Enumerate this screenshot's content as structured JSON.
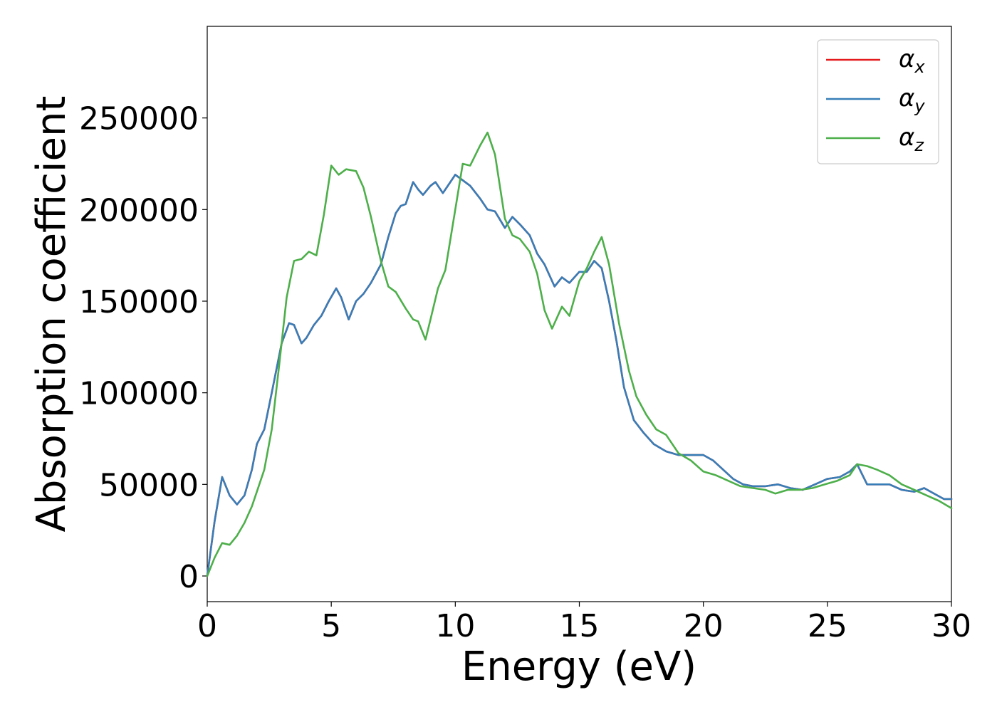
{
  "chart_data": {
    "type": "line",
    "xlabel": "Energy (eV)",
    "ylabel": "Absorption coefficient",
    "xlim": [
      0,
      30
    ],
    "ylim": [
      -14000,
      300000
    ],
    "xticks": [
      0,
      5,
      10,
      15,
      20,
      25,
      30
    ],
    "yticks": [
      0,
      50000,
      100000,
      150000,
      200000,
      250000
    ],
    "grid": false,
    "legend_position": "top-right",
    "series": [
      {
        "name": "αx",
        "legend_main": "α",
        "legend_sub": "x",
        "color": "#e41a1c",
        "points": [
          [
            0,
            0
          ],
          [
            0.3,
            30000
          ],
          [
            0.6,
            54000
          ],
          [
            0.9,
            44000
          ],
          [
            1.2,
            39000
          ],
          [
            1.5,
            44000
          ],
          [
            1.8,
            58000
          ],
          [
            2.0,
            72000
          ],
          [
            2.3,
            80000
          ],
          [
            2.6,
            100000
          ],
          [
            3.0,
            127000
          ],
          [
            3.3,
            138000
          ],
          [
            3.5,
            137000
          ],
          [
            3.8,
            127000
          ],
          [
            4.0,
            130000
          ],
          [
            4.3,
            137000
          ],
          [
            4.6,
            142000
          ],
          [
            4.9,
            150000
          ],
          [
            5.2,
            157000
          ],
          [
            5.4,
            152000
          ],
          [
            5.7,
            140000
          ],
          [
            6.0,
            150000
          ],
          [
            6.3,
            154000
          ],
          [
            6.6,
            160000
          ],
          [
            7.0,
            170000
          ],
          [
            7.3,
            185000
          ],
          [
            7.6,
            198000
          ],
          [
            7.8,
            202000
          ],
          [
            8.0,
            203000
          ],
          [
            8.3,
            215000
          ],
          [
            8.5,
            211000
          ],
          [
            8.7,
            208000
          ],
          [
            9.0,
            213000
          ],
          [
            9.2,
            215000
          ],
          [
            9.5,
            209000
          ],
          [
            9.7,
            213000
          ],
          [
            10.0,
            219000
          ],
          [
            10.3,
            216000
          ],
          [
            10.6,
            213000
          ],
          [
            11.0,
            206000
          ],
          [
            11.3,
            200000
          ],
          [
            11.6,
            199000
          ],
          [
            12.0,
            190000
          ],
          [
            12.3,
            196000
          ],
          [
            12.6,
            192000
          ],
          [
            13.0,
            186000
          ],
          [
            13.3,
            176000
          ],
          [
            13.6,
            170000
          ],
          [
            14.0,
            158000
          ],
          [
            14.3,
            163000
          ],
          [
            14.6,
            160000
          ],
          [
            15.0,
            166000
          ],
          [
            15.3,
            166000
          ],
          [
            15.6,
            172000
          ],
          [
            15.9,
            168000
          ],
          [
            16.2,
            150000
          ],
          [
            16.5,
            128000
          ],
          [
            16.8,
            103000
          ],
          [
            17.2,
            85000
          ],
          [
            17.6,
            78000
          ],
          [
            18.0,
            72000
          ],
          [
            18.5,
            68000
          ],
          [
            19.0,
            66000
          ],
          [
            19.5,
            66000
          ],
          [
            20.0,
            66000
          ],
          [
            20.4,
            63000
          ],
          [
            20.8,
            58000
          ],
          [
            21.2,
            53000
          ],
          [
            21.6,
            50000
          ],
          [
            22.0,
            49000
          ],
          [
            22.5,
            49000
          ],
          [
            23.0,
            50000
          ],
          [
            23.5,
            48000
          ],
          [
            24.0,
            47000
          ],
          [
            24.5,
            50000
          ],
          [
            25.0,
            53000
          ],
          [
            25.5,
            54000
          ],
          [
            25.9,
            57000
          ],
          [
            26.2,
            61000
          ],
          [
            26.6,
            50000
          ],
          [
            27.0,
            50000
          ],
          [
            27.5,
            50000
          ],
          [
            28.0,
            47000
          ],
          [
            28.5,
            46000
          ],
          [
            28.9,
            48000
          ],
          [
            29.3,
            45000
          ],
          [
            29.7,
            42000
          ],
          [
            30.0,
            42000
          ]
        ]
      },
      {
        "name": "αy",
        "legend_main": "α",
        "legend_sub": "y",
        "color": "#377eb8",
        "points": [
          [
            0,
            0
          ],
          [
            0.3,
            30000
          ],
          [
            0.6,
            54000
          ],
          [
            0.9,
            44000
          ],
          [
            1.2,
            39000
          ],
          [
            1.5,
            44000
          ],
          [
            1.8,
            58000
          ],
          [
            2.0,
            72000
          ],
          [
            2.3,
            80000
          ],
          [
            2.6,
            100000
          ],
          [
            3.0,
            127000
          ],
          [
            3.3,
            138000
          ],
          [
            3.5,
            137000
          ],
          [
            3.8,
            127000
          ],
          [
            4.0,
            130000
          ],
          [
            4.3,
            137000
          ],
          [
            4.6,
            142000
          ],
          [
            4.9,
            150000
          ],
          [
            5.2,
            157000
          ],
          [
            5.4,
            152000
          ],
          [
            5.7,
            140000
          ],
          [
            6.0,
            150000
          ],
          [
            6.3,
            154000
          ],
          [
            6.6,
            160000
          ],
          [
            7.0,
            170000
          ],
          [
            7.3,
            185000
          ],
          [
            7.6,
            198000
          ],
          [
            7.8,
            202000
          ],
          [
            8.0,
            203000
          ],
          [
            8.3,
            215000
          ],
          [
            8.5,
            211000
          ],
          [
            8.7,
            208000
          ],
          [
            9.0,
            213000
          ],
          [
            9.2,
            215000
          ],
          [
            9.5,
            209000
          ],
          [
            9.7,
            213000
          ],
          [
            10.0,
            219000
          ],
          [
            10.3,
            216000
          ],
          [
            10.6,
            213000
          ],
          [
            11.0,
            206000
          ],
          [
            11.3,
            200000
          ],
          [
            11.6,
            199000
          ],
          [
            12.0,
            190000
          ],
          [
            12.3,
            196000
          ],
          [
            12.6,
            192000
          ],
          [
            13.0,
            186000
          ],
          [
            13.3,
            176000
          ],
          [
            13.6,
            170000
          ],
          [
            14.0,
            158000
          ],
          [
            14.3,
            163000
          ],
          [
            14.6,
            160000
          ],
          [
            15.0,
            166000
          ],
          [
            15.3,
            166000
          ],
          [
            15.6,
            172000
          ],
          [
            15.9,
            168000
          ],
          [
            16.2,
            150000
          ],
          [
            16.5,
            128000
          ],
          [
            16.8,
            103000
          ],
          [
            17.2,
            85000
          ],
          [
            17.6,
            78000
          ],
          [
            18.0,
            72000
          ],
          [
            18.5,
            68000
          ],
          [
            19.0,
            66000
          ],
          [
            19.5,
            66000
          ],
          [
            20.0,
            66000
          ],
          [
            20.4,
            63000
          ],
          [
            20.8,
            58000
          ],
          [
            21.2,
            53000
          ],
          [
            21.6,
            50000
          ],
          [
            22.0,
            49000
          ],
          [
            22.5,
            49000
          ],
          [
            23.0,
            50000
          ],
          [
            23.5,
            48000
          ],
          [
            24.0,
            47000
          ],
          [
            24.5,
            50000
          ],
          [
            25.0,
            53000
          ],
          [
            25.5,
            54000
          ],
          [
            25.9,
            57000
          ],
          [
            26.2,
            61000
          ],
          [
            26.6,
            50000
          ],
          [
            27.0,
            50000
          ],
          [
            27.5,
            50000
          ],
          [
            28.0,
            47000
          ],
          [
            28.5,
            46000
          ],
          [
            28.9,
            48000
          ],
          [
            29.3,
            45000
          ],
          [
            29.7,
            42000
          ],
          [
            30.0,
            42000
          ]
        ]
      },
      {
        "name": "αz",
        "legend_main": "α",
        "legend_sub": "z",
        "color": "#4daf4a",
        "points": [
          [
            0,
            0
          ],
          [
            0.3,
            10000
          ],
          [
            0.6,
            18000
          ],
          [
            0.9,
            17000
          ],
          [
            1.2,
            22000
          ],
          [
            1.5,
            29000
          ],
          [
            1.8,
            38000
          ],
          [
            2.0,
            46000
          ],
          [
            2.3,
            58000
          ],
          [
            2.6,
            80000
          ],
          [
            2.9,
            115000
          ],
          [
            3.2,
            152000
          ],
          [
            3.5,
            172000
          ],
          [
            3.8,
            173000
          ],
          [
            4.1,
            177000
          ],
          [
            4.4,
            175000
          ],
          [
            4.7,
            197000
          ],
          [
            5.0,
            224000
          ],
          [
            5.3,
            219000
          ],
          [
            5.6,
            222000
          ],
          [
            6.0,
            221000
          ],
          [
            6.3,
            212000
          ],
          [
            6.6,
            196000
          ],
          [
            7.0,
            172000
          ],
          [
            7.3,
            158000
          ],
          [
            7.6,
            155000
          ],
          [
            8.0,
            146000
          ],
          [
            8.3,
            140000
          ],
          [
            8.5,
            139000
          ],
          [
            8.8,
            129000
          ],
          [
            9.0,
            140000
          ],
          [
            9.3,
            157000
          ],
          [
            9.6,
            167000
          ],
          [
            10.0,
            200000
          ],
          [
            10.3,
            225000
          ],
          [
            10.6,
            224000
          ],
          [
            11.0,
            235000
          ],
          [
            11.3,
            242000
          ],
          [
            11.6,
            230000
          ],
          [
            12.0,
            195000
          ],
          [
            12.3,
            186000
          ],
          [
            12.6,
            184000
          ],
          [
            13.0,
            177000
          ],
          [
            13.3,
            165000
          ],
          [
            13.6,
            145000
          ],
          [
            13.9,
            135000
          ],
          [
            14.3,
            147000
          ],
          [
            14.6,
            142000
          ],
          [
            15.0,
            161000
          ],
          [
            15.3,
            168000
          ],
          [
            15.6,
            177000
          ],
          [
            15.9,
            185000
          ],
          [
            16.2,
            170000
          ],
          [
            16.6,
            138000
          ],
          [
            17.0,
            112000
          ],
          [
            17.3,
            98000
          ],
          [
            17.7,
            88000
          ],
          [
            18.1,
            80000
          ],
          [
            18.5,
            77000
          ],
          [
            19.0,
            67000
          ],
          [
            19.5,
            63000
          ],
          [
            20.0,
            57000
          ],
          [
            20.5,
            55000
          ],
          [
            21.0,
            52000
          ],
          [
            21.5,
            49000
          ],
          [
            22.0,
            48000
          ],
          [
            22.5,
            47000
          ],
          [
            22.9,
            45000
          ],
          [
            23.4,
            47000
          ],
          [
            23.9,
            47000
          ],
          [
            24.4,
            48000
          ],
          [
            24.9,
            50000
          ],
          [
            25.4,
            52000
          ],
          [
            25.9,
            55000
          ],
          [
            26.2,
            61000
          ],
          [
            26.6,
            60000
          ],
          [
            27.0,
            58000
          ],
          [
            27.5,
            55000
          ],
          [
            28.0,
            50000
          ],
          [
            28.5,
            47000
          ],
          [
            29.0,
            44000
          ],
          [
            29.5,
            41000
          ],
          [
            30.0,
            37000
          ]
        ]
      }
    ]
  }
}
